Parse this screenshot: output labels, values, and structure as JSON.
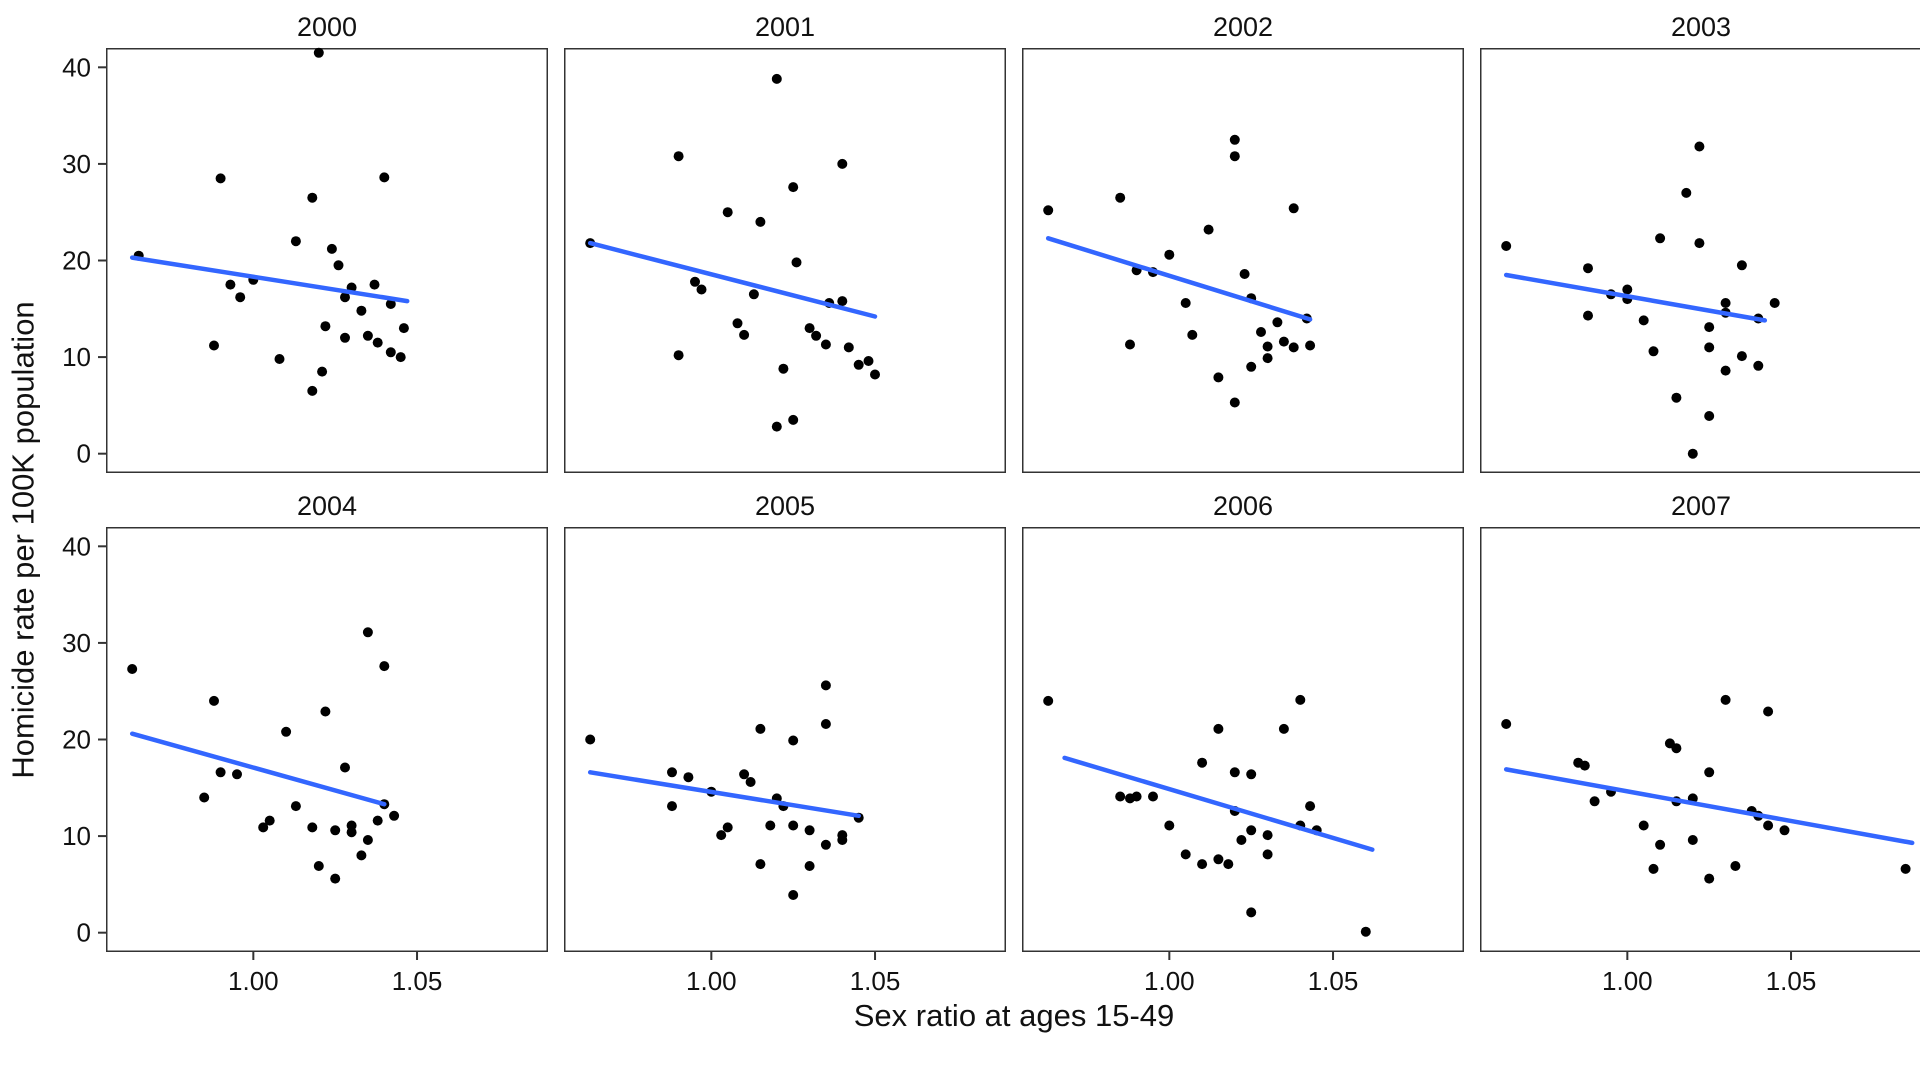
{
  "chart_data": {
    "type": "scatter",
    "title": "",
    "xlabel": "Sex ratio at ages 15-49",
    "ylabel": "Homicide rate per 100K population",
    "layout": {
      "rows": 2,
      "cols": 4,
      "grid": false,
      "legend": "none"
    },
    "x_domain": [
      0.955,
      1.09
    ],
    "y_domain": [
      -2,
      42
    ],
    "x_ticks": [
      {
        "value": 1.0,
        "label": "1.00"
      },
      {
        "value": 1.05,
        "label": "1.05"
      }
    ],
    "y_ticks": [
      {
        "value": 0,
        "label": "0"
      },
      {
        "value": 10,
        "label": "10"
      },
      {
        "value": 20,
        "label": "20"
      },
      {
        "value": 30,
        "label": "30"
      },
      {
        "value": 40,
        "label": "40"
      }
    ],
    "point_color": "#000000",
    "trend_color": "#3366FF",
    "panel_border_color": "#333333",
    "facets": [
      {
        "title": "2000",
        "points": [
          [
            0.965,
            20.5
          ],
          [
            0.99,
            28.5
          ],
          [
            0.988,
            11.2
          ],
          [
            0.993,
            17.5
          ],
          [
            0.996,
            16.2
          ],
          [
            1.0,
            18.0
          ],
          [
            1.008,
            9.8
          ],
          [
            1.013,
            22.0
          ],
          [
            1.018,
            26.5
          ],
          [
            1.02,
            41.5
          ],
          [
            1.018,
            6.5
          ],
          [
            1.021,
            8.5
          ],
          [
            1.024,
            21.2
          ],
          [
            1.026,
            19.5
          ],
          [
            1.022,
            13.2
          ],
          [
            1.028,
            12.0
          ],
          [
            1.03,
            17.2
          ],
          [
            1.028,
            16.2
          ],
          [
            1.033,
            14.8
          ],
          [
            1.037,
            17.5
          ],
          [
            1.035,
            12.2
          ],
          [
            1.04,
            28.6
          ],
          [
            1.038,
            11.5
          ],
          [
            1.042,
            15.5
          ],
          [
            1.042,
            10.5
          ],
          [
            1.045,
            10.0
          ],
          [
            1.046,
            13.0
          ]
        ],
        "trend": {
          "x1": 0.963,
          "y1": 20.3,
          "x2": 1.047,
          "y2": 15.8
        }
      },
      {
        "title": "2001",
        "points": [
          [
            0.963,
            21.8
          ],
          [
            0.99,
            30.8
          ],
          [
            0.99,
            10.2
          ],
          [
            0.995,
            17.8
          ],
          [
            0.997,
            17.0
          ],
          [
            1.005,
            25.0
          ],
          [
            1.008,
            13.5
          ],
          [
            1.01,
            12.3
          ],
          [
            1.013,
            16.5
          ],
          [
            1.015,
            24.0
          ],
          [
            1.02,
            38.8
          ],
          [
            1.025,
            27.6
          ],
          [
            1.022,
            8.8
          ],
          [
            1.02,
            2.8
          ],
          [
            1.025,
            3.5
          ],
          [
            1.026,
            19.8
          ],
          [
            1.03,
            13.0
          ],
          [
            1.032,
            12.2
          ],
          [
            1.036,
            15.6
          ],
          [
            1.035,
            11.3
          ],
          [
            1.04,
            30.0
          ],
          [
            1.04,
            15.8
          ],
          [
            1.042,
            11.0
          ],
          [
            1.045,
            9.2
          ],
          [
            1.048,
            9.6
          ],
          [
            1.05,
            8.2
          ]
        ],
        "trend": {
          "x1": 0.963,
          "y1": 21.8,
          "x2": 1.05,
          "y2": 14.2
        }
      },
      {
        "title": "2002",
        "points": [
          [
            0.963,
            25.2
          ],
          [
            0.985,
            26.5
          ],
          [
            0.988,
            11.3
          ],
          [
            0.99,
            19.0
          ],
          [
            0.995,
            18.8
          ],
          [
            1.0,
            20.6
          ],
          [
            1.005,
            15.6
          ],
          [
            1.007,
            12.3
          ],
          [
            1.012,
            23.2
          ],
          [
            1.015,
            7.9
          ],
          [
            1.02,
            32.5
          ],
          [
            1.02,
            30.8
          ],
          [
            1.02,
            5.3
          ],
          [
            1.023,
            18.6
          ],
          [
            1.025,
            16.1
          ],
          [
            1.025,
            9.0
          ],
          [
            1.028,
            12.6
          ],
          [
            1.03,
            11.1
          ],
          [
            1.03,
            9.9
          ],
          [
            1.033,
            13.6
          ],
          [
            1.035,
            11.6
          ],
          [
            1.038,
            25.4
          ],
          [
            1.038,
            11.0
          ],
          [
            1.042,
            14.0
          ],
          [
            1.043,
            11.2
          ]
        ],
        "trend": {
          "x1": 0.963,
          "y1": 22.3,
          "x2": 1.043,
          "y2": 13.9
        }
      },
      {
        "title": "2003",
        "points": [
          [
            0.963,
            21.5
          ],
          [
            0.988,
            19.2
          ],
          [
            0.988,
            14.3
          ],
          [
            0.995,
            16.5
          ],
          [
            1.0,
            17.0
          ],
          [
            1.0,
            16.0
          ],
          [
            1.005,
            13.8
          ],
          [
            1.01,
            22.3
          ],
          [
            1.008,
            10.6
          ],
          [
            1.018,
            27.0
          ],
          [
            1.015,
            5.8
          ],
          [
            1.02,
            0.0
          ],
          [
            1.022,
            31.8
          ],
          [
            1.022,
            21.8
          ],
          [
            1.025,
            13.1
          ],
          [
            1.025,
            11.0
          ],
          [
            1.025,
            3.9
          ],
          [
            1.03,
            15.6
          ],
          [
            1.03,
            14.6
          ],
          [
            1.03,
            8.6
          ],
          [
            1.035,
            19.5
          ],
          [
            1.035,
            10.1
          ],
          [
            1.04,
            14.0
          ],
          [
            1.04,
            9.1
          ],
          [
            1.045,
            15.6
          ]
        ],
        "trend": {
          "x1": 0.963,
          "y1": 18.5,
          "x2": 1.042,
          "y2": 13.8
        }
      },
      {
        "title": "2004",
        "points": [
          [
            0.963,
            27.3
          ],
          [
            0.988,
            24.0
          ],
          [
            0.985,
            14.0
          ],
          [
            0.99,
            16.6
          ],
          [
            0.995,
            16.4
          ],
          [
            1.003,
            10.9
          ],
          [
            1.005,
            11.6
          ],
          [
            1.01,
            20.8
          ],
          [
            1.013,
            13.1
          ],
          [
            1.02,
            6.9
          ],
          [
            1.018,
            10.9
          ],
          [
            1.022,
            22.9
          ],
          [
            1.025,
            10.6
          ],
          [
            1.025,
            5.6
          ],
          [
            1.028,
            17.1
          ],
          [
            1.03,
            11.1
          ],
          [
            1.03,
            10.4
          ],
          [
            1.035,
            31.1
          ],
          [
            1.035,
            9.6
          ],
          [
            1.033,
            8.0
          ],
          [
            1.04,
            27.6
          ],
          [
            1.038,
            11.6
          ],
          [
            1.04,
            13.3
          ],
          [
            1.043,
            12.1
          ]
        ],
        "trend": {
          "x1": 0.963,
          "y1": 20.6,
          "x2": 1.04,
          "y2": 13.3
        }
      },
      {
        "title": "2005",
        "points": [
          [
            0.963,
            20.0
          ],
          [
            0.988,
            16.6
          ],
          [
            0.988,
            13.1
          ],
          [
            0.993,
            16.1
          ],
          [
            1.0,
            14.6
          ],
          [
            1.003,
            10.1
          ],
          [
            1.005,
            10.9
          ],
          [
            1.01,
            16.4
          ],
          [
            1.012,
            15.6
          ],
          [
            1.015,
            21.1
          ],
          [
            1.015,
            7.1
          ],
          [
            1.018,
            11.1
          ],
          [
            1.02,
            13.9
          ],
          [
            1.022,
            13.1
          ],
          [
            1.025,
            19.9
          ],
          [
            1.025,
            11.1
          ],
          [
            1.025,
            3.9
          ],
          [
            1.03,
            10.6
          ],
          [
            1.03,
            6.9
          ],
          [
            1.035,
            25.6
          ],
          [
            1.035,
            21.6
          ],
          [
            1.035,
            9.1
          ],
          [
            1.04,
            10.1
          ],
          [
            1.04,
            9.6
          ],
          [
            1.045,
            11.9
          ]
        ],
        "trend": {
          "x1": 0.963,
          "y1": 16.6,
          "x2": 1.045,
          "y2": 12.1
        }
      },
      {
        "title": "2006",
        "points": [
          [
            0.963,
            24.0
          ],
          [
            0.985,
            14.1
          ],
          [
            0.988,
            13.9
          ],
          [
            0.99,
            14.1
          ],
          [
            0.995,
            14.1
          ],
          [
            1.0,
            11.1
          ],
          [
            1.005,
            8.1
          ],
          [
            1.01,
            17.6
          ],
          [
            1.01,
            7.1
          ],
          [
            1.015,
            21.1
          ],
          [
            1.015,
            7.6
          ],
          [
            1.018,
            7.1
          ],
          [
            1.02,
            16.6
          ],
          [
            1.02,
            12.6
          ],
          [
            1.022,
            9.6
          ],
          [
            1.025,
            16.4
          ],
          [
            1.025,
            10.6
          ],
          [
            1.025,
            2.1
          ],
          [
            1.03,
            10.1
          ],
          [
            1.03,
            8.1
          ],
          [
            1.035,
            21.1
          ],
          [
            1.04,
            24.1
          ],
          [
            1.04,
            11.1
          ],
          [
            1.043,
            13.1
          ],
          [
            1.045,
            10.6
          ],
          [
            1.06,
            0.1
          ]
        ],
        "trend": {
          "x1": 0.968,
          "y1": 18.1,
          "x2": 1.062,
          "y2": 8.6
        }
      },
      {
        "title": "2007",
        "points": [
          [
            0.963,
            21.6
          ],
          [
            0.985,
            17.6
          ],
          [
            0.987,
            17.3
          ],
          [
            0.99,
            13.6
          ],
          [
            0.995,
            14.6
          ],
          [
            1.005,
            11.1
          ],
          [
            1.008,
            6.6
          ],
          [
            1.01,
            9.1
          ],
          [
            1.013,
            19.6
          ],
          [
            1.015,
            19.1
          ],
          [
            1.015,
            13.6
          ],
          [
            1.02,
            13.9
          ],
          [
            1.02,
            9.6
          ],
          [
            1.025,
            16.6
          ],
          [
            1.025,
            5.6
          ],
          [
            1.03,
            24.1
          ],
          [
            1.033,
            6.9
          ],
          [
            1.038,
            12.6
          ],
          [
            1.04,
            12.1
          ],
          [
            1.043,
            22.9
          ],
          [
            1.043,
            11.1
          ],
          [
            1.048,
            10.6
          ],
          [
            1.085,
            6.6
          ]
        ],
        "trend": {
          "x1": 0.963,
          "y1": 16.9,
          "x2": 1.087,
          "y2": 9.3
        }
      }
    ]
  }
}
